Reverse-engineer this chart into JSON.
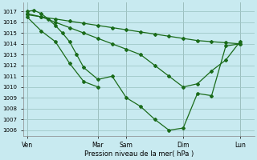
{
  "bg_color": "#c8eaf0",
  "grid_color": "#a0c8c8",
  "line_color": "#1a6b1a",
  "marker": "D",
  "marker_size": 2.0,
  "line_width": 0.9,
  "ylabel_ticks": [
    1006,
    1007,
    1008,
    1009,
    1010,
    1011,
    1012,
    1013,
    1014,
    1015,
    1016,
    1017
  ],
  "xlabel": "Pression niveau de la mer( hPa )",
  "xtick_labels": [
    "Ven",
    "Mar",
    "Sam",
    "Dim",
    "Lun"
  ],
  "xtick_positions": [
    0,
    10,
    14,
    22,
    30
  ],
  "xlim": [
    -0.5,
    32
  ],
  "ylim": [
    1005.5,
    1017.8
  ],
  "lines": [
    {
      "x": [
        0,
        1,
        2,
        3,
        4,
        5,
        6,
        7,
        8,
        10,
        12,
        14,
        16,
        18,
        20,
        22,
        24,
        26,
        28,
        30
      ],
      "y": [
        1017.0,
        1017.1,
        1016.8,
        1016.3,
        1015.7,
        1015.0,
        1014.2,
        1013.0,
        1011.8,
        1010.7,
        1011.0,
        1009.0,
        1008.2,
        1007.0,
        1006.0,
        1006.2,
        1009.4,
        1009.2,
        1013.8,
        1014.0
      ]
    },
    {
      "x": [
        0,
        2,
        4,
        6,
        8,
        10,
        12,
        14,
        16,
        18,
        20,
        22,
        24,
        26,
        28,
        30
      ],
      "y": [
        1016.8,
        1016.5,
        1016.0,
        1015.5,
        1015.0,
        1014.5,
        1014.0,
        1013.5,
        1013.0,
        1012.0,
        1011.0,
        1010.0,
        1010.3,
        1011.5,
        1012.5,
        1014.2
      ]
    },
    {
      "x": [
        0,
        2,
        4,
        6,
        8,
        10,
        12,
        14,
        16,
        18,
        20,
        22,
        24,
        26,
        28,
        30
      ],
      "y": [
        1016.7,
        1016.5,
        1016.3,
        1016.1,
        1015.9,
        1015.7,
        1015.5,
        1015.3,
        1015.1,
        1014.9,
        1014.7,
        1014.5,
        1014.3,
        1014.2,
        1014.1,
        1014.0
      ]
    },
    {
      "x": [
        0,
        2,
        4,
        6,
        8,
        10
      ],
      "y": [
        1016.5,
        1015.2,
        1014.2,
        1012.2,
        1010.5,
        1010.0
      ]
    }
  ]
}
